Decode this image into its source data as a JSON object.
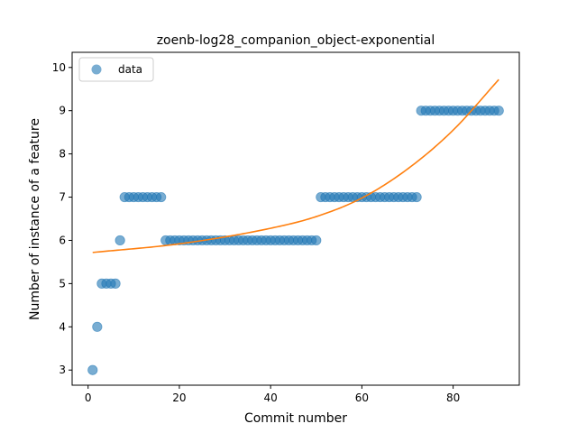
{
  "chart_data": {
    "type": "scatter",
    "title": "zoenb-log28_companion_object-exponential",
    "xlabel": "Commit number",
    "ylabel": "Number of instance of a feature",
    "xlim": [
      -3.5,
      94.5
    ],
    "ylim": [
      2.65,
      10.35
    ],
    "x_ticks": [
      0,
      20,
      40,
      60,
      80
    ],
    "y_ticks": [
      3,
      4,
      5,
      6,
      7,
      8,
      9,
      10
    ],
    "grid": false,
    "legend": {
      "position": "top-left",
      "entries": [
        "data"
      ]
    },
    "colors": {
      "data": "#1f77b4",
      "fit": "#ff7f0e"
    },
    "series": [
      {
        "name": "data",
        "kind": "scatter",
        "segments": [
          {
            "x_from": 1,
            "x_to": 1,
            "y": 3
          },
          {
            "x_from": 2,
            "x_to": 2,
            "y": 4
          },
          {
            "x_from": 3,
            "x_to": 6,
            "y": 5
          },
          {
            "x_from": 7,
            "x_to": 7,
            "y": 6
          },
          {
            "x_from": 8,
            "x_to": 16,
            "y": 7
          },
          {
            "x_from": 17,
            "x_to": 50,
            "y": 6
          },
          {
            "x_from": 51,
            "x_to": 72,
            "y": 7
          },
          {
            "x_from": 73,
            "x_to": 90,
            "y": 9
          }
        ]
      },
      {
        "kind": "line",
        "model": "exponential",
        "x_range": [
          1,
          90
        ],
        "points": [
          [
            1,
            5.72
          ],
          [
            20,
            5.92
          ],
          [
            40,
            6.28
          ],
          [
            50,
            6.55
          ],
          [
            60,
            6.98
          ],
          [
            70,
            7.65
          ],
          [
            80,
            8.55
          ],
          [
            90,
            9.72
          ]
        ]
      }
    ]
  }
}
